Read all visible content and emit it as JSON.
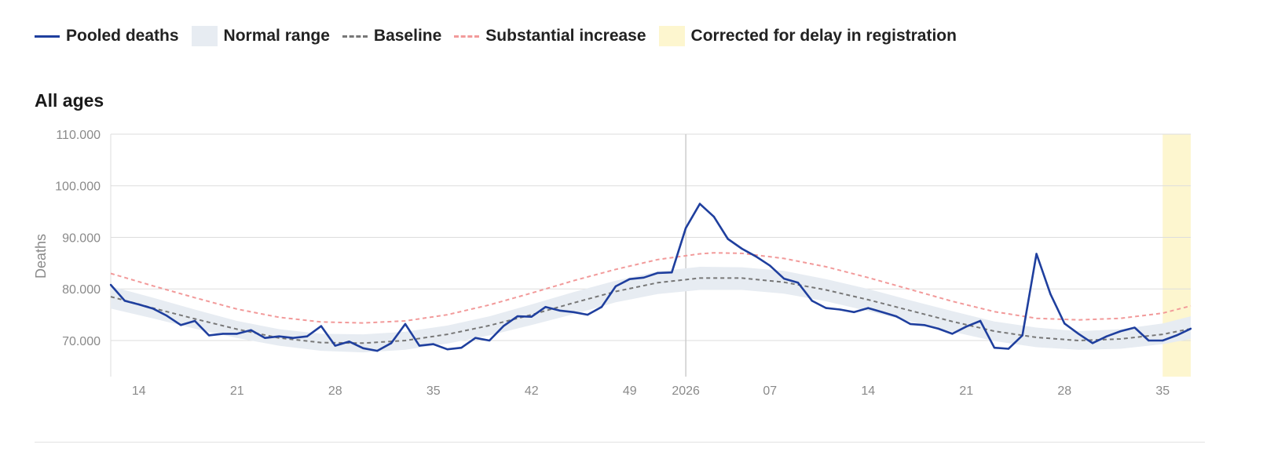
{
  "legend": {
    "pooled": "Pooled deaths",
    "normal": "Normal range",
    "baseline": "Baseline",
    "substantial": "Substantial increase",
    "corrected": "Corrected for delay in registration"
  },
  "colors": {
    "pooled": "#1f3f9e",
    "normal": "#e7ecf2",
    "baseline": "#777777",
    "substantial": "#f29a9a",
    "corrected": "#fdf6cf",
    "grid": "#dddddd",
    "tick_text": "#8a8a8a"
  },
  "chart_data": {
    "type": "line",
    "title": "All ages",
    "ylabel": "Deaths",
    "xlabel": "",
    "ylim": [
      63000,
      110000
    ],
    "yticks": [
      70000,
      80000,
      90000,
      100000,
      110000
    ],
    "ytick_labels": [
      "70.000",
      "80.000",
      "90.000",
      "100.000",
      "110.000"
    ],
    "x_week_range": [
      12,
      89
    ],
    "x_ticks": [
      {
        "week": 14,
        "label": "14"
      },
      {
        "week": 21,
        "label": "21"
      },
      {
        "week": 28,
        "label": "28"
      },
      {
        "week": 35,
        "label": "35"
      },
      {
        "week": 42,
        "label": "42"
      },
      {
        "week": 49,
        "label": "49"
      },
      {
        "week": 53,
        "label": "2026"
      },
      {
        "week": 59,
        "label": "07"
      },
      {
        "week": 66,
        "label": "14"
      },
      {
        "week": 73,
        "label": "21"
      },
      {
        "week": 80,
        "label": "28"
      },
      {
        "week": 87,
        "label": "35"
      }
    ],
    "year_boundary_week": 53,
    "corrected_range": [
      87,
      89
    ],
    "grid": true,
    "legend_position": "top",
    "series": [
      {
        "name": "Pooled deaths",
        "points": [
          [
            12,
            80800
          ],
          [
            13,
            77700
          ],
          [
            14,
            77000
          ],
          [
            15,
            76200
          ],
          [
            16,
            74800
          ],
          [
            17,
            73000
          ],
          [
            18,
            73800
          ],
          [
            19,
            71000
          ],
          [
            20,
            71300
          ],
          [
            21,
            71300
          ],
          [
            22,
            72000
          ],
          [
            23,
            70500
          ],
          [
            24,
            70800
          ],
          [
            25,
            70500
          ],
          [
            26,
            70800
          ],
          [
            27,
            72800
          ],
          [
            28,
            69000
          ],
          [
            29,
            69800
          ],
          [
            30,
            68500
          ],
          [
            31,
            68000
          ],
          [
            32,
            69500
          ],
          [
            33,
            73200
          ],
          [
            34,
            69000
          ],
          [
            35,
            69300
          ],
          [
            36,
            68300
          ],
          [
            37,
            68600
          ],
          [
            38,
            70500
          ],
          [
            39,
            70000
          ],
          [
            40,
            72800
          ],
          [
            41,
            74700
          ],
          [
            42,
            74600
          ],
          [
            43,
            76500
          ],
          [
            44,
            75800
          ],
          [
            45,
            75500
          ],
          [
            46,
            75000
          ],
          [
            47,
            76500
          ],
          [
            48,
            80500
          ],
          [
            49,
            81900
          ],
          [
            50,
            82200
          ],
          [
            51,
            83100
          ],
          [
            52,
            83200
          ],
          [
            53,
            91800
          ],
          [
            54,
            96500
          ],
          [
            55,
            94000
          ],
          [
            56,
            89700
          ],
          [
            57,
            87800
          ],
          [
            58,
            86300
          ],
          [
            59,
            84500
          ],
          [
            60,
            82000
          ],
          [
            61,
            81200
          ],
          [
            62,
            77700
          ],
          [
            63,
            76300
          ],
          [
            64,
            76000
          ],
          [
            65,
            75500
          ],
          [
            66,
            76300
          ],
          [
            67,
            75500
          ],
          [
            68,
            74700
          ],
          [
            69,
            73200
          ],
          [
            70,
            73000
          ],
          [
            71,
            72300
          ],
          [
            72,
            71300
          ],
          [
            73,
            72700
          ],
          [
            74,
            73800
          ],
          [
            75,
            68600
          ],
          [
            76,
            68400
          ],
          [
            77,
            71000
          ],
          [
            78,
            86800
          ],
          [
            79,
            79000
          ],
          [
            80,
            73300
          ],
          [
            81,
            71300
          ],
          [
            82,
            69500
          ],
          [
            83,
            70800
          ],
          [
            84,
            71800
          ],
          [
            85,
            72500
          ],
          [
            86,
            70000
          ],
          [
            87,
            70000
          ],
          [
            88,
            71000
          ],
          [
            89,
            72300
          ]
        ]
      },
      {
        "name": "Baseline",
        "points": [
          [
            12,
            78500
          ],
          [
            15,
            76300
          ],
          [
            18,
            74200
          ],
          [
            21,
            72200
          ],
          [
            24,
            70500
          ],
          [
            27,
            69600
          ],
          [
            30,
            69500
          ],
          [
            33,
            70000
          ],
          [
            36,
            71200
          ],
          [
            39,
            72900
          ],
          [
            42,
            75000
          ],
          [
            45,
            77300
          ],
          [
            48,
            79500
          ],
          [
            51,
            81200
          ],
          [
            54,
            82100
          ],
          [
            57,
            82100
          ],
          [
            60,
            81300
          ],
          [
            63,
            79800
          ],
          [
            66,
            77900
          ],
          [
            69,
            75800
          ],
          [
            72,
            73700
          ],
          [
            75,
            71800
          ],
          [
            78,
            70600
          ],
          [
            81,
            70000
          ],
          [
            84,
            70300
          ],
          [
            87,
            71200
          ],
          [
            89,
            72300
          ]
        ]
      },
      {
        "name": "Substantial increase",
        "points": [
          [
            12,
            83000
          ],
          [
            15,
            80600
          ],
          [
            18,
            78300
          ],
          [
            21,
            76100
          ],
          [
            24,
            74500
          ],
          [
            27,
            73600
          ],
          [
            30,
            73400
          ],
          [
            33,
            73800
          ],
          [
            36,
            75000
          ],
          [
            39,
            76900
          ],
          [
            42,
            79200
          ],
          [
            45,
            81600
          ],
          [
            48,
            83800
          ],
          [
            51,
            85700
          ],
          [
            54,
            86800
          ],
          [
            55,
            87000
          ],
          [
            57,
            86900
          ],
          [
            60,
            85900
          ],
          [
            63,
            84300
          ],
          [
            66,
            82200
          ],
          [
            69,
            79900
          ],
          [
            72,
            77600
          ],
          [
            75,
            75600
          ],
          [
            78,
            74300
          ],
          [
            81,
            74000
          ],
          [
            84,
            74300
          ],
          [
            87,
            75300
          ],
          [
            89,
            76700
          ]
        ]
      },
      {
        "name": "Normal range",
        "upper": [
          [
            12,
            80500
          ],
          [
            15,
            78300
          ],
          [
            18,
            76000
          ],
          [
            21,
            73800
          ],
          [
            24,
            72200
          ],
          [
            27,
            71300
          ],
          [
            30,
            71200
          ],
          [
            33,
            71700
          ],
          [
            36,
            72900
          ],
          [
            39,
            74700
          ],
          [
            42,
            77000
          ],
          [
            45,
            79400
          ],
          [
            48,
            81600
          ],
          [
            51,
            83400
          ],
          [
            54,
            84300
          ],
          [
            57,
            84200
          ],
          [
            60,
            83500
          ],
          [
            63,
            81900
          ],
          [
            66,
            80000
          ],
          [
            69,
            77800
          ],
          [
            72,
            75700
          ],
          [
            75,
            73700
          ],
          [
            78,
            72500
          ],
          [
            81,
            71800
          ],
          [
            84,
            72200
          ],
          [
            87,
            73300
          ],
          [
            89,
            74700
          ]
        ],
        "lower": [
          [
            12,
            76200
          ],
          [
            15,
            74300
          ],
          [
            18,
            72300
          ],
          [
            21,
            70500
          ],
          [
            24,
            69000
          ],
          [
            27,
            68000
          ],
          [
            30,
            67700
          ],
          [
            33,
            68200
          ],
          [
            36,
            69400
          ],
          [
            39,
            71000
          ],
          [
            42,
            73000
          ],
          [
            45,
            75100
          ],
          [
            48,
            77400
          ],
          [
            51,
            79000
          ],
          [
            54,
            79800
          ],
          [
            57,
            79800
          ],
          [
            60,
            79100
          ],
          [
            63,
            77600
          ],
          [
            66,
            75700
          ],
          [
            69,
            73700
          ],
          [
            72,
            71700
          ],
          [
            75,
            69900
          ],
          [
            78,
            68700
          ],
          [
            81,
            68200
          ],
          [
            84,
            68400
          ],
          [
            87,
            69300
          ],
          [
            89,
            70300
          ]
        ]
      }
    ]
  }
}
